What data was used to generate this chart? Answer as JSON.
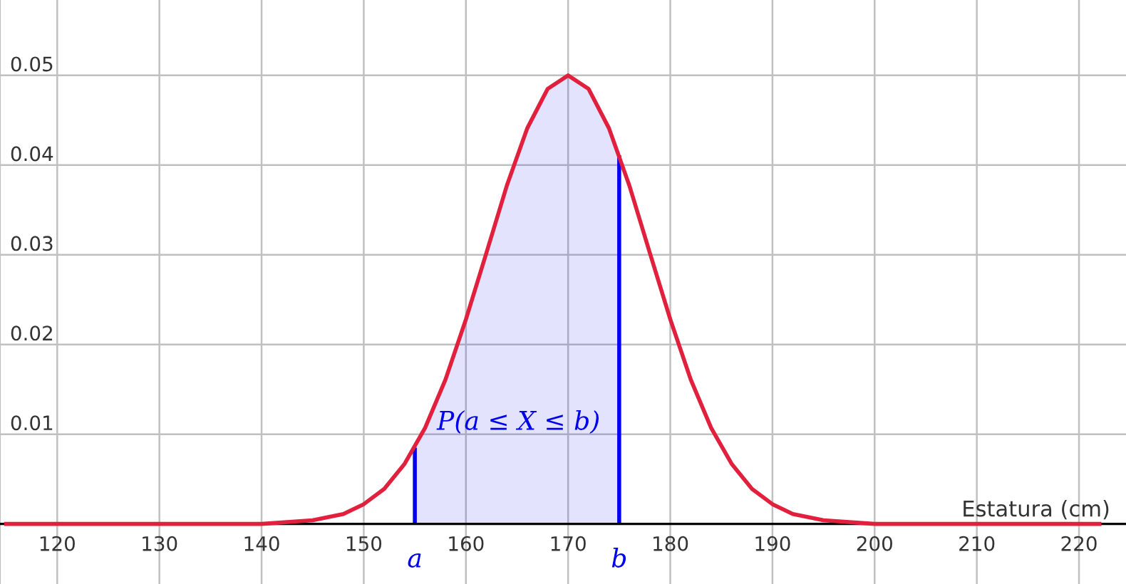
{
  "chart_data": {
    "type": "line",
    "xlabel": "Estatura (cm)",
    "xlim": [
      114.4,
      224.6
    ],
    "ylim": [
      -0.0067,
      0.0584
    ],
    "xticks": [
      120,
      130,
      140,
      150,
      160,
      170,
      180,
      190,
      200,
      210,
      220
    ],
    "yticks": [
      {
        "value": 0,
        "label": null
      },
      0.01,
      0.02,
      0.03,
      0.04,
      0.05
    ],
    "grid": true,
    "series": [
      {
        "type": "area",
        "color": "#0000ee",
        "x": [
          155,
          156,
          158,
          160,
          162,
          164,
          166,
          168,
          170,
          172,
          174,
          175
        ],
        "values": [
          0.0085,
          0.0107,
          0.0161,
          0.0228,
          0.0302,
          0.0377,
          0.0441,
          0.0485,
          0.05,
          0.0485,
          0.0441,
          0.0411
        ]
      },
      {
        "color": "#e0203c",
        "x": [
          115,
          130,
          140,
          145,
          148,
          150,
          152,
          154,
          156,
          158,
          160,
          162,
          164,
          166,
          168,
          170,
          172,
          174,
          176,
          178,
          180,
          182,
          184,
          186,
          188,
          190,
          192,
          195,
          200,
          210,
          222
        ],
        "values": [
          0,
          0,
          0,
          0.0004,
          0.0011,
          0.0022,
          0.0039,
          0.0067,
          0.0107,
          0.0161,
          0.0228,
          0.0302,
          0.0377,
          0.0441,
          0.0485,
          0.05,
          0.0485,
          0.0441,
          0.0377,
          0.0302,
          0.0228,
          0.0161,
          0.0107,
          0.0067,
          0.0039,
          0.0022,
          0.0011,
          0.0004,
          0,
          0,
          0
        ]
      }
    ],
    "annotations": [
      {
        "text": "a",
        "x": 155
      },
      {
        "text": "b",
        "x": 175
      },
      "P(a ≤ X ≤ b)"
    ]
  }
}
